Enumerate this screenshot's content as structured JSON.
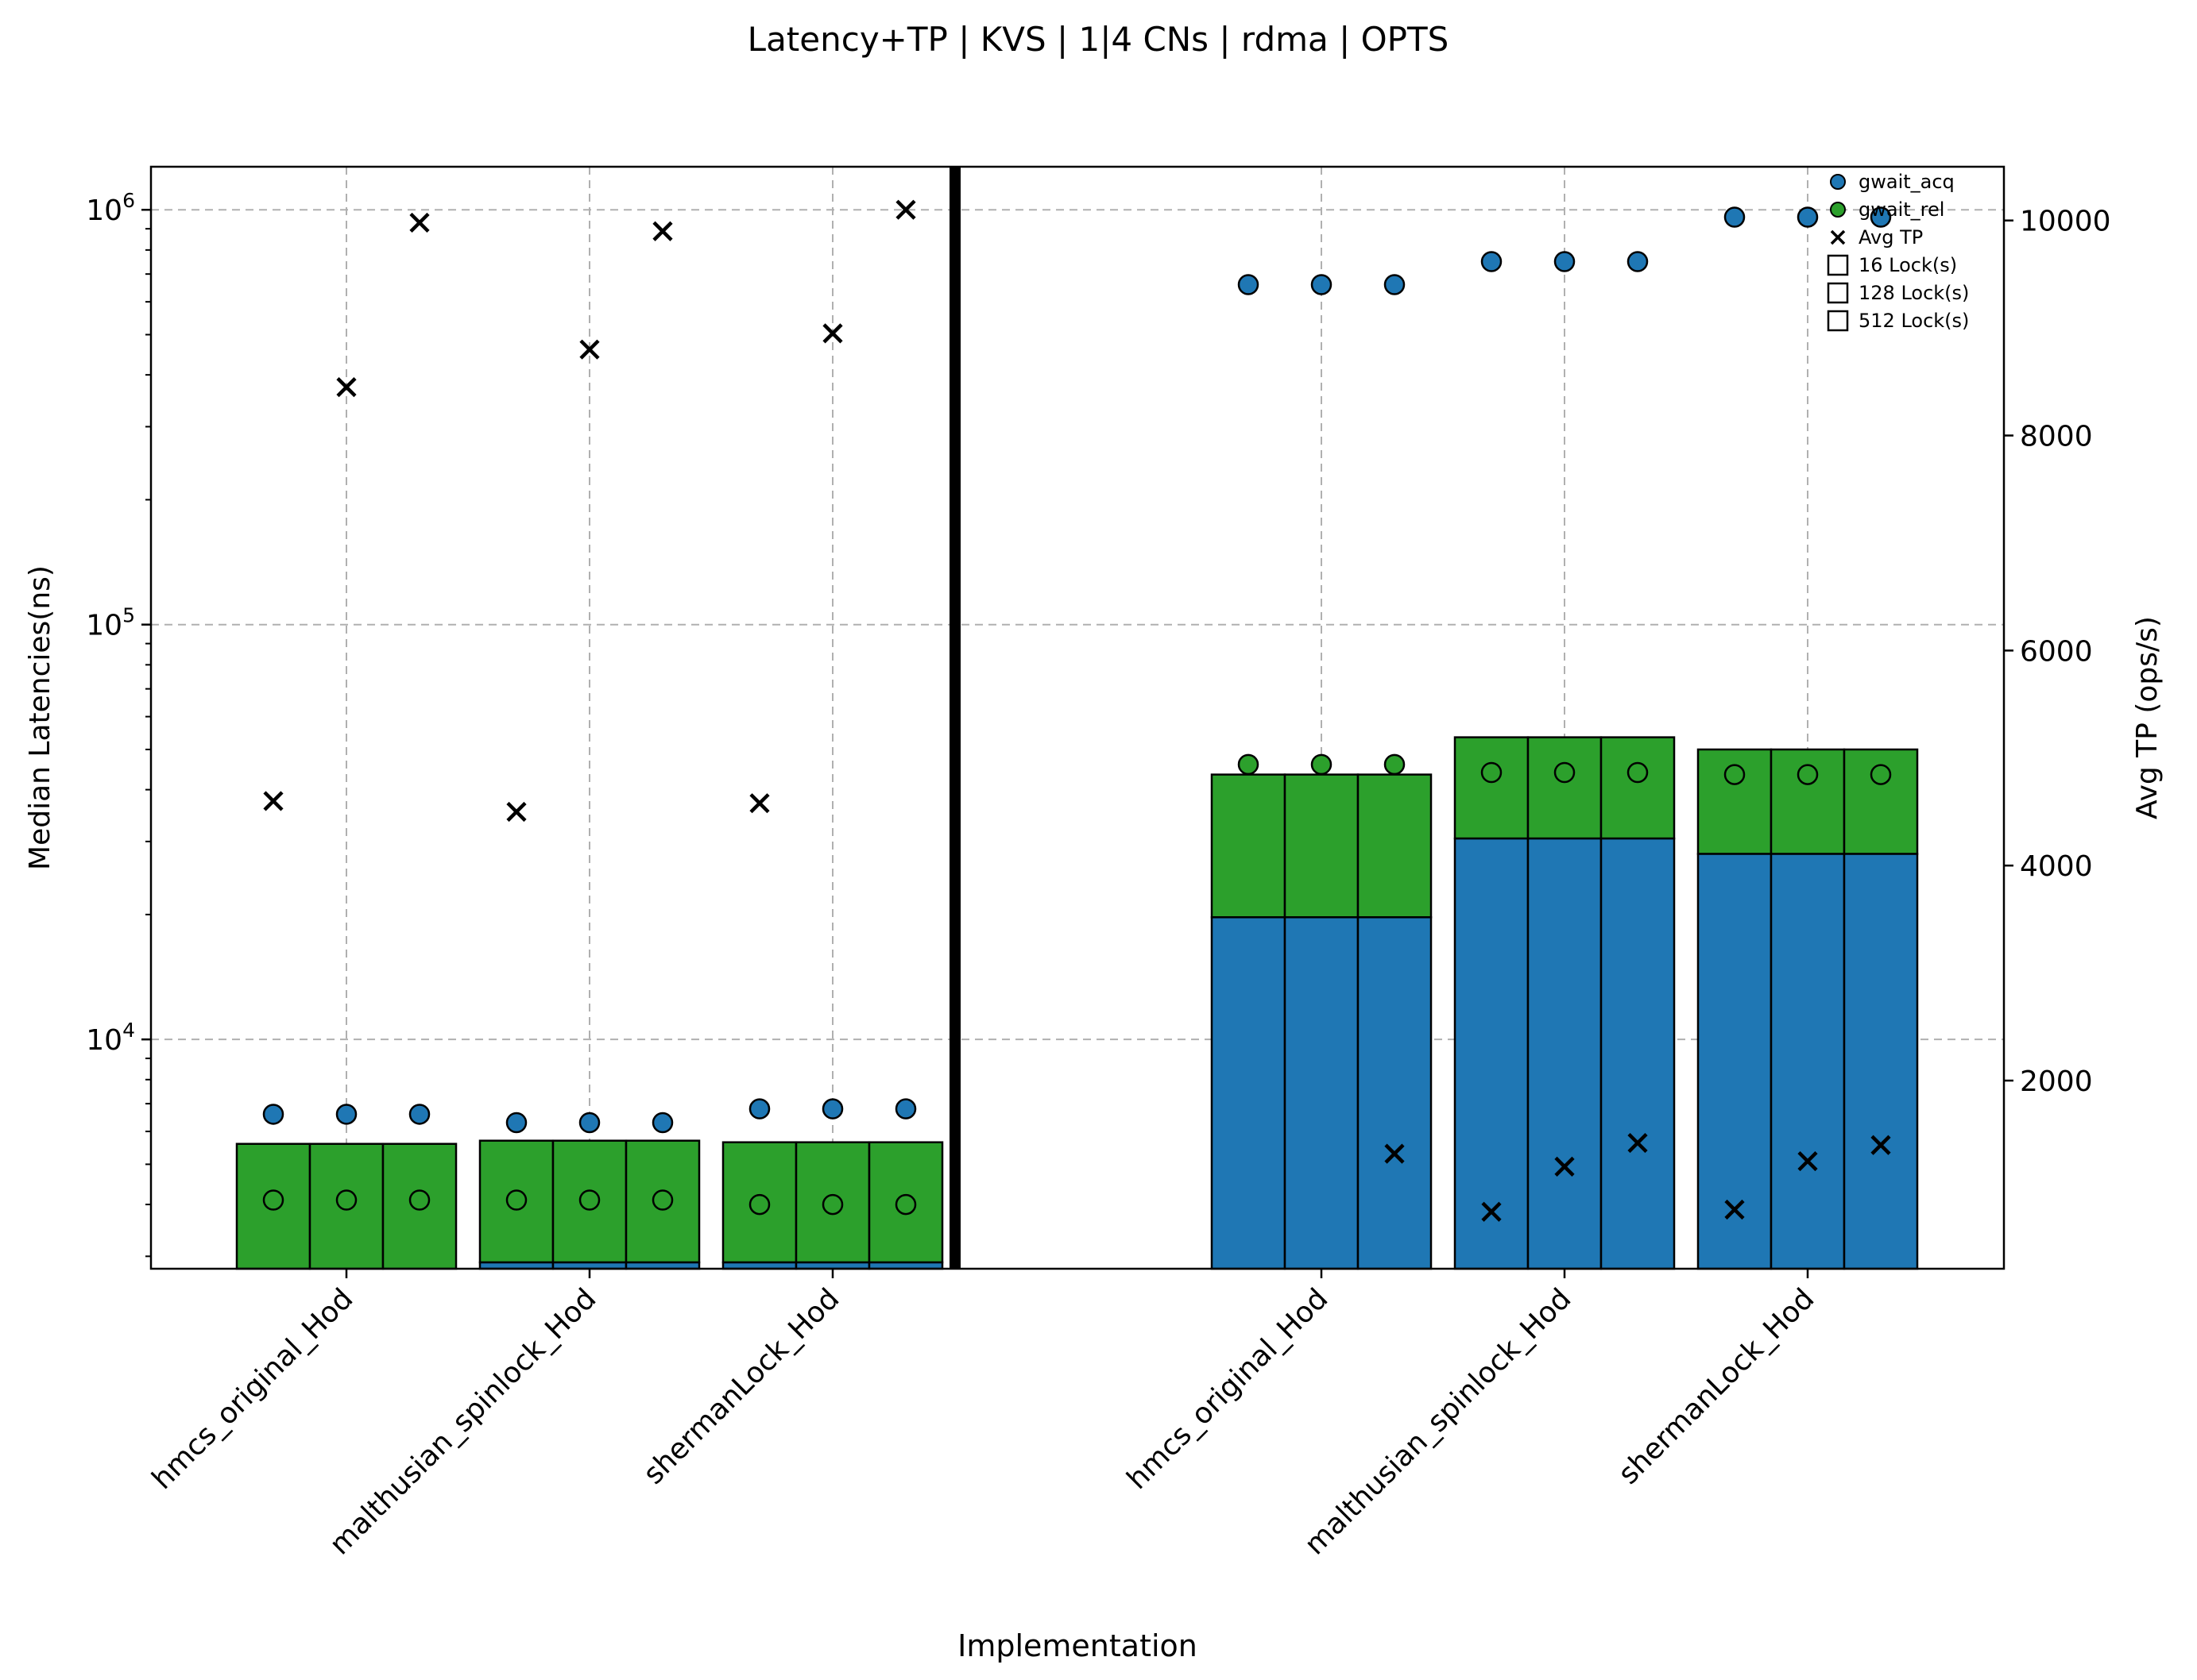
{
  "chart_data": {
    "type": "bar",
    "title": "Latency+TP | KVS | 1|4 CNs | rdma | OPTS",
    "xlabel": "Implementation",
    "ylabel_left": "Median Latencies(ns)",
    "ylabel_right": "Avg TP (ops/s)",
    "y_scale_left": "log",
    "ylim_left": [
      2800,
      1270000
    ],
    "yticks_left": [
      {
        "base": "10",
        "exp": "4",
        "value": 10000
      },
      {
        "base": "10",
        "exp": "5",
        "value": 100000
      },
      {
        "base": "10",
        "exp": "6",
        "value": 1000000
      }
    ],
    "ylim_right": [
      250,
      10500
    ],
    "yticks_right": [
      {
        "label": "2000",
        "value": 2000
      },
      {
        "label": "4000",
        "value": 4000
      },
      {
        "label": "6000",
        "value": 6000
      },
      {
        "label": "8000",
        "value": 8000
      },
      {
        "label": "10000",
        "value": 10000
      }
    ],
    "grid": true,
    "legend_position": "top-right",
    "colors": {
      "acq": "#1f77b4",
      "rel": "#2ca02c",
      "divider": "#000000"
    },
    "legend": {
      "acq": "gwait_acq",
      "rel": "gwait_rel",
      "tp": "Avg TP",
      "l16": "16 Lock(s)",
      "l128": "128 Lock(s)",
      "l512": "512 Lock(s)"
    },
    "lock_counts": [
      16,
      128,
      512
    ],
    "groups": [
      {
        "label": "hmcs_original_Hod",
        "panel": 1,
        "bar_acq": [
          0,
          0,
          0
        ],
        "bar_total": [
          5600,
          5600,
          5600
        ],
        "acq": [
          6600,
          6600,
          6600
        ],
        "rel": [
          4100,
          4100,
          4100
        ],
        "tp": [
          4600,
          8450,
          9980
        ]
      },
      {
        "label": "malthusian_spinlock_Hod",
        "panel": 1,
        "bar_acq": [
          2900,
          2900,
          2900
        ],
        "bar_total": [
          5700,
          5700,
          5700
        ],
        "acq": [
          6300,
          6300,
          6300
        ],
        "rel": [
          4100,
          4100,
          4100
        ],
        "tp": [
          4500,
          8800,
          9900
        ]
      },
      {
        "label": "shermanLock_Hod",
        "panel": 1,
        "bar_acq": [
          2900,
          2900,
          2900
        ],
        "bar_total": [
          5650,
          5650,
          5650
        ],
        "acq": [
          6800,
          6800,
          6800
        ],
        "rel": [
          4000,
          4000,
          4000
        ],
        "tp": [
          4580,
          8950,
          10100
        ]
      },
      {
        "label": "hmcs_original_Hod",
        "panel": 2,
        "bar_acq": [
          19700,
          19700,
          19700
        ],
        "bar_total": [
          43500,
          43500,
          43500
        ],
        "acq": [
          660000,
          660000,
          660000
        ],
        "rel": [
          46000,
          46000,
          46000
        ],
        "tp": [
          null,
          null,
          1320
        ]
      },
      {
        "label": "malthusian_spinlock_Hod",
        "panel": 2,
        "bar_acq": [
          30500,
          30500,
          30500
        ],
        "bar_total": [
          53500,
          53500,
          53500
        ],
        "acq": [
          750000,
          750000,
          750000
        ],
        "rel": [
          44000,
          44000,
          44000
        ],
        "tp": [
          780,
          1200,
          1420
        ]
      },
      {
        "label": "shermanLock_Hod",
        "panel": 2,
        "bar_acq": [
          28000,
          28000,
          28000
        ],
        "bar_total": [
          50000,
          50000,
          50000
        ],
        "acq": [
          960000,
          960000,
          960000
        ],
        "rel": [
          43500,
          43500,
          43500
        ],
        "tp": [
          800,
          1250,
          1400
        ]
      }
    ]
  }
}
